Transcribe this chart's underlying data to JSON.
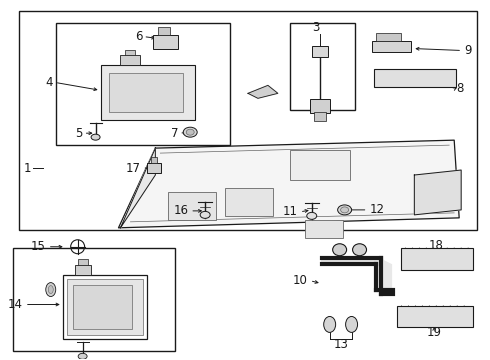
{
  "bg_color": "#ffffff",
  "blk": "#1a1a1a",
  "gray": "#666666",
  "lgray": "#cccccc",
  "fig_w": 4.9,
  "fig_h": 3.6,
  "dpi": 100
}
